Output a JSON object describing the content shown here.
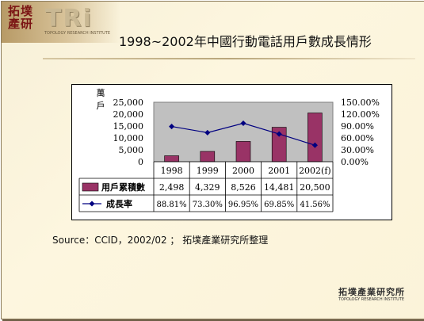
{
  "logo": {
    "cn_line1": "拓墣",
    "cn_line2": "產研",
    "brand": "TRi",
    "subtitle": "TOPOLOGY RESEARCH INSTITUTE"
  },
  "title": "1998~2002年中國行動電話用戶數成長情形",
  "source": "Source：CCID，2002/02 ； 拓墣產業研究所整理",
  "footer": {
    "cn": "拓墣產業研究所",
    "en": "TOPOLOGY RESEARCH INSTITUTE"
  },
  "colors": {
    "bar": "#993366",
    "line": "#000080",
    "plot_bg": "#c0c0c0"
  },
  "chart_data": {
    "type": "bar",
    "categories": [
      "1998",
      "1999",
      "2000",
      "2001",
      "2002(f)"
    ],
    "unit_label": "萬戶",
    "y_left": {
      "ticks": [
        "25,000",
        "20,000",
        "15,000",
        "10,000",
        "5,000",
        "0"
      ],
      "range": [
        0,
        25000
      ]
    },
    "y_right": {
      "ticks": [
        "150.00%",
        "120.00%",
        "90.00%",
        "60.00%",
        "30.00%",
        "0.00%"
      ],
      "range": [
        0,
        150
      ]
    },
    "grid": false,
    "legend": "table-below",
    "series": [
      {
        "name": "用戶累積數",
        "kind": "bar",
        "axis": "left",
        "values": [
          2498,
          4329,
          8526,
          14481,
          20500
        ],
        "labels": [
          "2,498",
          "4,329",
          "8,526",
          "14,481",
          "20,500"
        ]
      },
      {
        "name": "成長率",
        "kind": "line",
        "axis": "right",
        "values": [
          88.81,
          73.3,
          96.95,
          69.85,
          41.56
        ],
        "labels": [
          "88.81%",
          "73.30%",
          "96.95%",
          "69.85%",
          "41.56%"
        ]
      }
    ]
  }
}
